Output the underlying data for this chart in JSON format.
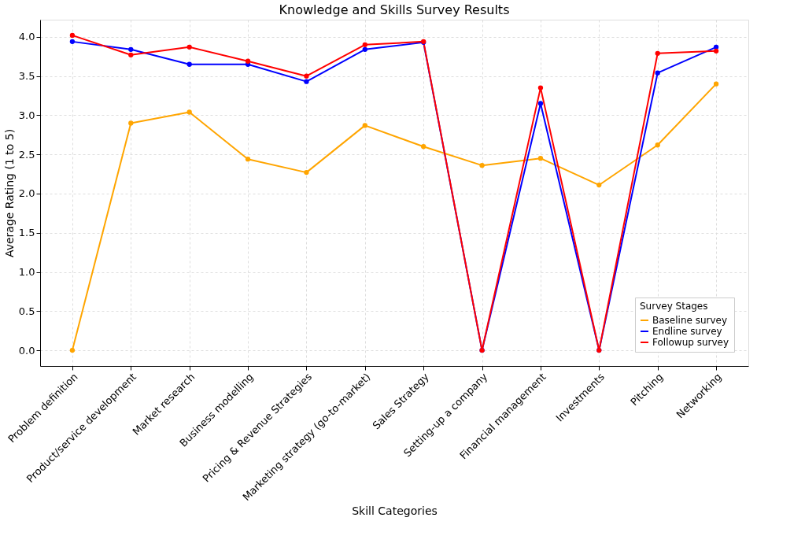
{
  "chart_data": {
    "type": "line",
    "title": "Knowledge and Skills Survey Results",
    "xlabel": "Skill Categories",
    "ylabel": "Average Rating (1 to 5)",
    "legend_title": "Survey Stages",
    "categories": [
      "Problem definition",
      "Product/service development",
      "Market research",
      "Business modelling",
      "Pricing & Revenue Strategies",
      "Marketing strategy (go-to-market)",
      "Sales Strategy",
      "Setting-up a company",
      "Financial management",
      "Investments",
      "Pitching",
      "Networking"
    ],
    "series": [
      {
        "name": "Baseline survey",
        "color": "#ffa500",
        "values": [
          0,
          2.9,
          3.04,
          2.44,
          2.27,
          2.87,
          2.6,
          2.36,
          2.45,
          2.11,
          2.62,
          3.4
        ]
      },
      {
        "name": "Endline survey",
        "color": "#0000ff",
        "values": [
          3.94,
          3.84,
          3.65,
          3.65,
          3.43,
          3.84,
          3.93,
          0,
          3.15,
          0,
          3.54,
          3.87
        ]
      },
      {
        "name": "Followup survey",
        "color": "#ff0000",
        "values": [
          4.02,
          3.77,
          3.87,
          3.69,
          3.5,
          3.9,
          3.94,
          0,
          3.35,
          0,
          3.79,
          3.82
        ]
      }
    ],
    "ylim": [
      -0.2,
      4.22
    ],
    "yticks": [
      {
        "value": 0,
        "label": "0.0"
      },
      0.5,
      {
        "value": 1,
        "label": "1.0"
      },
      1.5,
      {
        "value": 2,
        "label": "2.0"
      },
      2.5,
      {
        "value": 3,
        "label": "3.0"
      },
      3.5,
      {
        "value": 4,
        "label": "4.0"
      }
    ],
    "grid": true,
    "legend": "bottom right",
    "marker": "circle",
    "line_style": "solid"
  }
}
